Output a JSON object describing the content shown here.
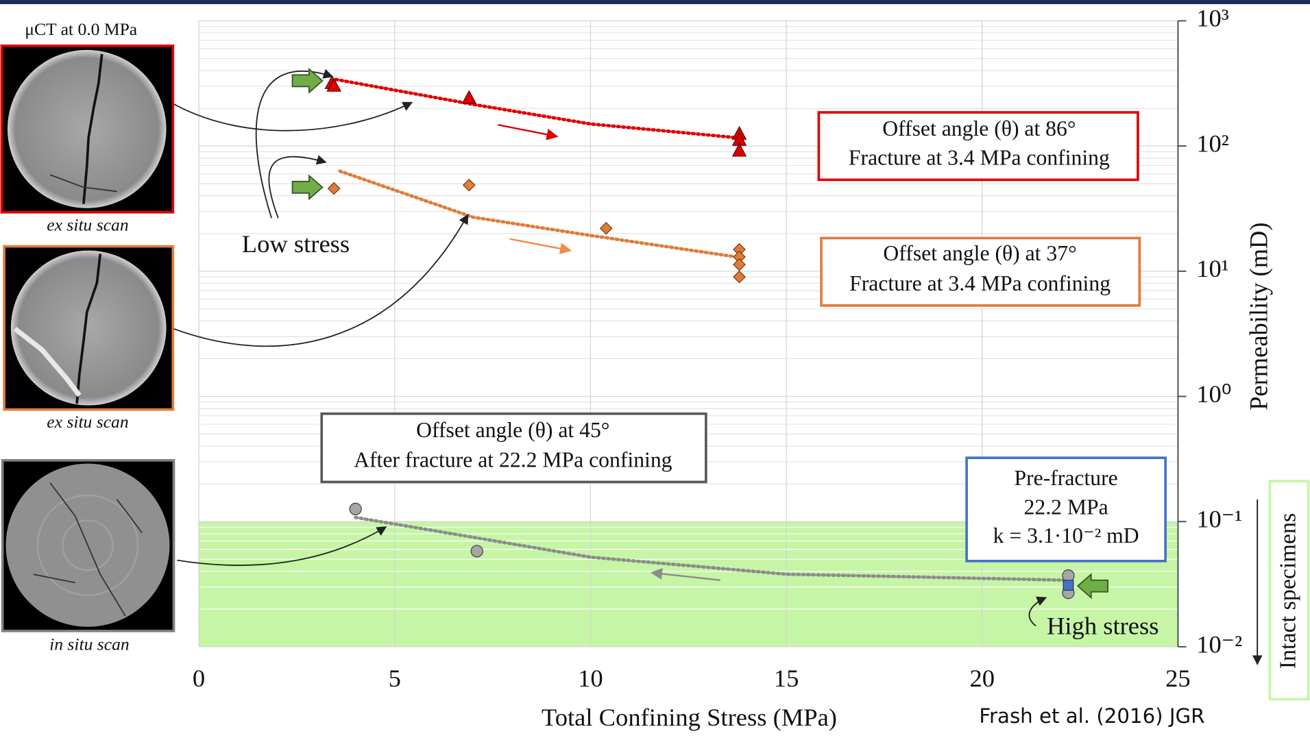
{
  "chart_data": {
    "type": "scatter",
    "x_label": "Total Confining Stress (MPa)",
    "y_label": "Permeability (mD)",
    "xlim": [
      0,
      25
    ],
    "xticks": [
      0,
      5,
      10,
      15,
      20,
      25
    ],
    "ylim": [
      0.01,
      1000
    ],
    "yticks": [
      {
        "value": 0.01,
        "label": "10⁻²"
      },
      {
        "value": 0.1,
        "label": "10⁻¹"
      },
      {
        "value": 1,
        "label": "10⁰"
      },
      {
        "value": 10,
        "label": "10¹"
      },
      {
        "value": 100,
        "label": "10²"
      },
      {
        "value": 1000,
        "label": "10³"
      }
    ],
    "y_scale": "log",
    "grid": true,
    "minor_grid": true,
    "shaded_band": {
      "range": [
        0.01,
        0.1
      ],
      "color": "#c6f5a6",
      "label": "Intact specimens"
    },
    "series": [
      {
        "marker": "triangle",
        "color": "#e00000",
        "x": [
          3.4,
          3.45,
          6.9,
          13.8,
          13.8,
          13.8
        ],
        "values": [
          315,
          300,
          240,
          124,
          111,
          91
        ]
      },
      {
        "marker": "diamond",
        "color": "#e07b39",
        "x": [
          3.45,
          6.9,
          10.4,
          13.8,
          13.8,
          13.8,
          13.8
        ],
        "values": [
          45.8,
          48.7,
          22,
          14.9,
          13,
          11.3,
          9
        ]
      },
      {
        "marker": "circle",
        "color": "#a6a6a6",
        "x": [
          4.0,
          7.1,
          22.2,
          22.2
        ],
        "values": [
          0.126,
          0.058,
          0.037,
          0.027
        ]
      },
      {
        "marker": "square",
        "color": "#4472c4",
        "x": [
          22.2
        ],
        "values": [
          0.031
        ]
      }
    ],
    "trendlines": [
      {
        "color": "#e00000",
        "x": [
          3.5,
          7,
          10,
          13.8
        ],
        "values": [
          340,
          215,
          150,
          116
        ]
      },
      {
        "color": "#e07b39",
        "x": [
          3.6,
          7,
          10,
          13.8
        ],
        "values": [
          63,
          27,
          19.3,
          12.9
        ]
      },
      {
        "color": "#8c8c8c",
        "x": [
          4,
          10,
          15,
          22.2
        ],
        "values": [
          0.108,
          0.052,
          0.038,
          0.034
        ]
      }
    ],
    "annotations": {
      "red_box": [
        "Offset angle (θ) at 86°",
        "Fracture at 3.4 MPa confining"
      ],
      "orange_box": [
        "Offset angle (θ) at 37°",
        "Fracture at 3.4 MPa confining"
      ],
      "gray_box": [
        "Offset angle (θ) at 45°",
        "After fracture at 22.2 MPa confining"
      ],
      "blue_box": [
        "Pre-fracture",
        "22.2 MPa",
        "k = 3.1·10⁻² mD"
      ],
      "low_stress": "Low stress",
      "high_stress": "High stress"
    },
    "images": {
      "title": "μCT at 0.0 MPa",
      "captions": [
        "ex situ scan",
        "ex situ scan",
        "in situ scan"
      ]
    },
    "citation": "Frash et al. (2016) JGR"
  }
}
